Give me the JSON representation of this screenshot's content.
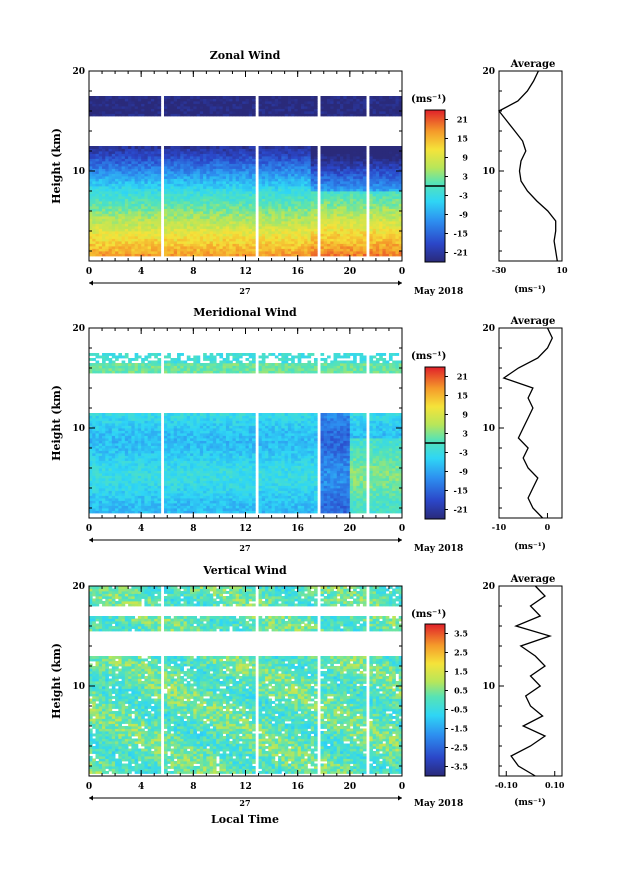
{
  "figure": {
    "date_label": "May 2018",
    "day_label": "27",
    "xlabel": "Local Time",
    "cbar_unit": "(ms⁻¹)",
    "avg_xlabel": "(ms⁻¹)",
    "avg_title": "Average"
  },
  "chart_data": [
    {
      "type": "heatmap",
      "title": "Zonal Wind",
      "ylabel": "Height (km)",
      "xlabel": "",
      "x_ticks": [
        "0",
        "4",
        "8",
        "12",
        "16",
        "20",
        "0"
      ],
      "xlim": [
        0,
        24
      ],
      "y_ticks": [
        "20",
        "10"
      ],
      "ylim": [
        1,
        20
      ],
      "data_gaps_hours": [
        5.7,
        12.8,
        17.7,
        21.3
      ],
      "colorbar": {
        "ticks": [
          "21",
          "15",
          "9",
          "3",
          "-3",
          "-9",
          "-15",
          "-21"
        ],
        "range": [
          -24,
          24
        ],
        "contour_level": 0
      },
      "average_profile": {
        "title": "Average",
        "x_ticks": [
          "-30",
          "10"
        ],
        "xlim": [
          -30,
          10
        ],
        "y_ticks": [
          "20",
          "10"
        ],
        "heights_km": [
          1,
          2,
          3,
          4,
          5,
          6,
          7,
          8,
          9,
          10,
          11,
          12,
          13,
          14,
          15,
          16,
          17,
          18,
          19,
          20
        ],
        "values_ms": [
          7,
          6,
          5,
          6,
          6,
          1,
          -6,
          -12,
          -16,
          -17,
          -16,
          -13,
          -15,
          -20,
          -25,
          -30,
          -18,
          -12,
          -8,
          -5
        ]
      }
    },
    {
      "type": "heatmap",
      "title": "Meridional Wind",
      "ylabel": "Height (km)",
      "xlabel": "",
      "x_ticks": [
        "0",
        "4",
        "8",
        "12",
        "16",
        "20",
        "0"
      ],
      "xlim": [
        0,
        24
      ],
      "y_ticks": [
        "20",
        "10"
      ],
      "ylim": [
        1,
        20
      ],
      "data_gaps_hours": [
        5.7,
        12.8,
        17.7,
        21.3
      ],
      "colorbar": {
        "ticks": [
          "21",
          "15",
          "9",
          "3",
          "-3",
          "-9",
          "-15",
          "-21"
        ],
        "range": [
          -24,
          24
        ],
        "contour_level": 0
      },
      "average_profile": {
        "title": "Average",
        "x_ticks": [
          "-10",
          "0"
        ],
        "xlim": [
          -10,
          3
        ],
        "y_ticks": [
          "20",
          "10"
        ],
        "heights_km": [
          1,
          2,
          3,
          4,
          5,
          6,
          7,
          8,
          9,
          10,
          11,
          12,
          13,
          14,
          15,
          16,
          17,
          18,
          19,
          20
        ],
        "values_ms": [
          -1,
          -3,
          -4,
          -3,
          -2,
          -4,
          -5,
          -4,
          -6,
          -5,
          -4,
          -3,
          -4,
          -3,
          -9,
          -6,
          -2,
          0,
          1,
          0
        ]
      }
    },
    {
      "type": "heatmap",
      "title": "Vertical Wind",
      "ylabel": "Height (km)",
      "xlabel": "Local Time",
      "x_ticks": [
        "0",
        "4",
        "8",
        "12",
        "16",
        "20",
        "0"
      ],
      "xlim": [
        0,
        24
      ],
      "y_ticks": [
        "20",
        "10"
      ],
      "ylim": [
        1,
        20
      ],
      "data_gaps_hours": [
        5.7,
        12.8,
        17.7,
        21.3
      ],
      "colorbar": {
        "ticks": [
          "3.5",
          "2.5",
          "1.5",
          "0.5",
          "-0.5",
          "-1.5",
          "-2.5",
          "-3.5"
        ],
        "range": [
          -4,
          4
        ],
        "contour_level": null
      },
      "average_profile": {
        "title": "Average",
        "x_ticks": [
          "-0.10",
          "0.10"
        ],
        "xlim": [
          -0.13,
          0.13
        ],
        "y_ticks": [
          "20",
          "10"
        ],
        "heights_km": [
          1,
          2,
          3,
          4,
          5,
          6,
          7,
          8,
          9,
          10,
          11,
          12,
          13,
          14,
          15,
          16,
          17,
          18,
          19,
          20
        ],
        "values_ms": [
          0.02,
          -0.05,
          -0.08,
          0.0,
          0.06,
          -0.03,
          0.05,
          0.0,
          -0.02,
          0.04,
          0.0,
          0.06,
          0.02,
          -0.04,
          0.08,
          -0.06,
          0.04,
          0.0,
          0.06,
          0.02
        ]
      }
    }
  ]
}
